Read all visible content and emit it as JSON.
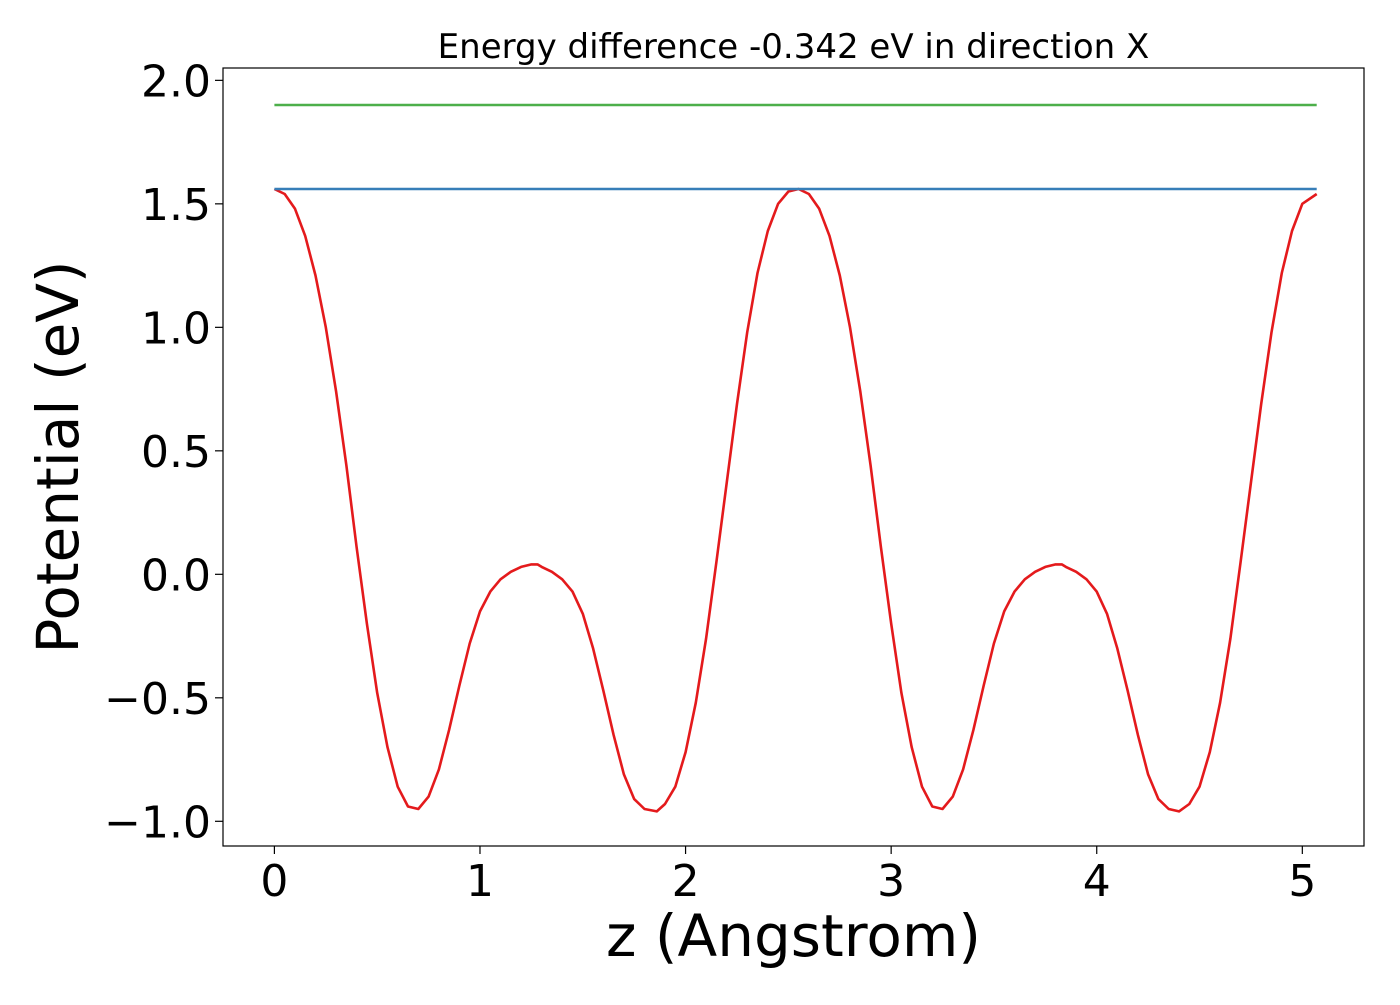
{
  "chart_data": {
    "type": "line",
    "title": "Energy difference -0.342 eV in direction X",
    "xlabel": "z (Angstrom)",
    "ylabel": "Potential (eV)",
    "xlim": [
      -0.25,
      5.3
    ],
    "ylim": [
      -1.1,
      2.05
    ],
    "xticks": [
      0,
      1,
      2,
      3,
      4,
      5
    ],
    "xtick_labels": [
      "0",
      "1",
      "2",
      "3",
      "4",
      "5"
    ],
    "yticks": [
      -1.0,
      -0.5,
      0.0,
      0.5,
      1.0,
      1.5,
      2.0
    ],
    "ytick_labels": [
      "−1.0",
      "−0.5",
      "0.0",
      "0.5",
      "1.0",
      "1.5",
      "2.0"
    ],
    "grid": false,
    "legend": "none",
    "series": [
      {
        "color": "#e41a1c",
        "x": [
          0.0,
          0.05,
          0.1,
          0.15,
          0.2,
          0.25,
          0.3,
          0.35,
          0.4,
          0.45,
          0.5,
          0.55,
          0.6,
          0.65,
          0.7,
          0.75,
          0.8,
          0.85,
          0.9,
          0.95,
          1.0,
          1.05,
          1.1,
          1.15,
          1.2,
          1.25,
          1.28,
          1.3,
          1.35,
          1.4,
          1.45,
          1.5,
          1.55,
          1.6,
          1.65,
          1.7,
          1.75,
          1.8,
          1.86,
          1.9,
          1.95,
          2.0,
          2.05,
          2.1,
          2.15,
          2.2,
          2.25,
          2.3,
          2.35,
          2.4,
          2.45,
          2.5,
          2.55,
          2.6,
          2.65,
          2.7,
          2.75,
          2.8,
          2.85,
          2.9,
          2.95,
          3.0,
          3.05,
          3.1,
          3.15,
          3.2,
          3.25,
          3.3,
          3.35,
          3.4,
          3.45,
          3.5,
          3.55,
          3.6,
          3.65,
          3.7,
          3.75,
          3.8,
          3.83,
          3.85,
          3.9,
          3.95,
          4.0,
          4.05,
          4.1,
          4.15,
          4.2,
          4.25,
          4.3,
          4.35,
          4.4,
          4.45,
          4.5,
          4.55,
          4.6,
          4.65,
          4.7,
          4.75,
          4.8,
          4.85,
          4.9,
          4.95,
          5.0,
          5.07
        ],
        "y": [
          1.56,
          1.54,
          1.48,
          1.37,
          1.21,
          1.0,
          0.74,
          0.44,
          0.11,
          -0.2,
          -0.48,
          -0.7,
          -0.86,
          -0.94,
          -0.95,
          -0.9,
          -0.79,
          -0.63,
          -0.45,
          -0.28,
          -0.15,
          -0.07,
          -0.02,
          0.01,
          0.03,
          0.04,
          0.04,
          0.03,
          0.01,
          -0.02,
          -0.07,
          -0.16,
          -0.3,
          -0.47,
          -0.65,
          -0.81,
          -0.91,
          -0.95,
          -0.96,
          -0.93,
          -0.86,
          -0.72,
          -0.52,
          -0.26,
          0.05,
          0.37,
          0.69,
          0.98,
          1.22,
          1.39,
          1.5,
          1.55,
          1.56,
          1.54,
          1.48,
          1.37,
          1.21,
          1.0,
          0.74,
          0.44,
          0.11,
          -0.2,
          -0.48,
          -0.7,
          -0.86,
          -0.94,
          -0.95,
          -0.9,
          -0.79,
          -0.63,
          -0.45,
          -0.28,
          -0.15,
          -0.07,
          -0.02,
          0.01,
          0.03,
          0.04,
          0.04,
          0.03,
          0.01,
          -0.02,
          -0.07,
          -0.16,
          -0.3,
          -0.47,
          -0.65,
          -0.81,
          -0.91,
          -0.95,
          -0.96,
          -0.93,
          -0.86,
          -0.72,
          -0.52,
          -0.26,
          0.05,
          0.37,
          0.69,
          0.98,
          1.22,
          1.39,
          1.5,
          1.54
        ]
      },
      {
        "color": "#4daf4a",
        "x": [
          0.0,
          5.07
        ],
        "y": [
          1.9,
          1.9
        ]
      },
      {
        "color": "#377eb8",
        "x": [
          0.0,
          5.07
        ],
        "y": [
          1.56,
          1.56
        ]
      }
    ]
  }
}
